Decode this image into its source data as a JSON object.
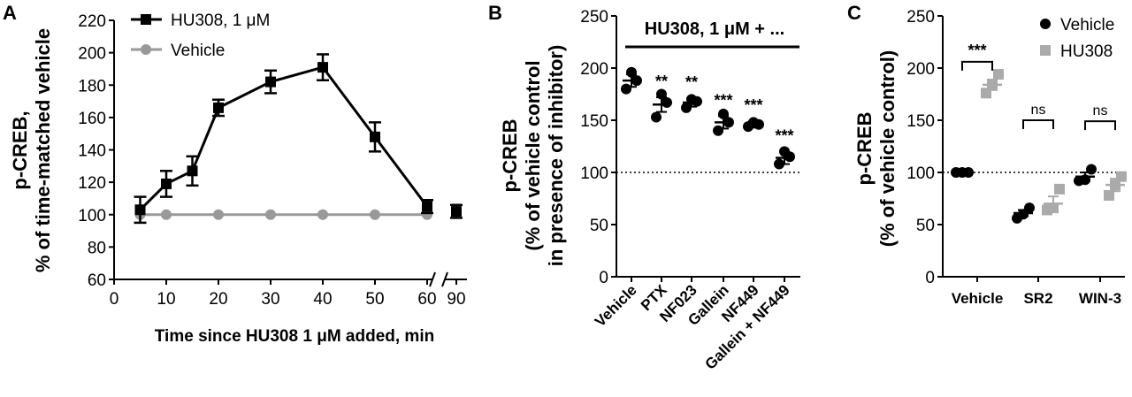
{
  "chart_data": [
    {
      "panel": "A",
      "type": "line",
      "title": "",
      "xlabel": "Time since HU308 1 μM added, min",
      "ylabel_lines": [
        "p-CREB,",
        "% of time-matched vehicle"
      ],
      "xlim": [
        0,
        90
      ],
      "ylim": [
        60,
        220
      ],
      "x_ticks": [
        "0",
        "10",
        "20",
        "30",
        "40",
        "50",
        "60",
        "90"
      ],
      "y_ticks": [
        "60",
        "80",
        "100",
        "120",
        "140",
        "160",
        "180",
        "200",
        "220"
      ],
      "legend_position": "top-left",
      "series": [
        {
          "name": "HU308, 1 μM",
          "color": "#000000",
          "marker": "square",
          "x": [
            5,
            10,
            15,
            20,
            30,
            40,
            50,
            60,
            90
          ],
          "y": [
            103,
            119,
            127,
            166,
            182,
            191,
            148,
            105,
            102
          ],
          "err": [
            8,
            8,
            9,
            5,
            7,
            8,
            9,
            4,
            4
          ]
        },
        {
          "name": "Vehicle",
          "color": "#999999",
          "marker": "circle",
          "x": [
            5,
            10,
            20,
            30,
            40,
            50,
            60
          ],
          "y": [
            100,
            100,
            100,
            100,
            100,
            100,
            100
          ],
          "err": [
            0,
            0,
            0,
            0,
            0,
            0,
            0
          ]
        }
      ]
    },
    {
      "panel": "B",
      "type": "scatter",
      "title": "HU308, 1 μM + ...",
      "ylabel_lines": [
        "p-CREB",
        "(% of vehicle control",
        "in presence of inhibitor)"
      ],
      "ylim": [
        0,
        250
      ],
      "y_ticks": [
        "0",
        "50",
        "100",
        "150",
        "200",
        "250"
      ],
      "reference_line": 100,
      "categories": [
        "Vehicle",
        "PTX",
        "NF023",
        "Gallein",
        "NF449",
        "Gallein + NF449"
      ],
      "means": [
        188,
        165,
        167,
        148,
        146,
        114
      ],
      "sem": [
        6,
        7,
        4,
        6,
        3,
        6
      ],
      "points": [
        [
          180,
          188,
          196
        ],
        [
          153,
          167,
          175
        ],
        [
          162,
          168,
          170
        ],
        [
          140,
          148,
          156
        ],
        [
          144,
          146,
          148
        ],
        [
          108,
          115,
          120
        ]
      ],
      "significance": [
        "",
        "**",
        "**",
        "***",
        "***",
        "***"
      ],
      "color": "#000000"
    },
    {
      "panel": "C",
      "type": "scatter",
      "title": "",
      "ylabel_lines": [
        "p-CREB",
        "(% of vehicle control)"
      ],
      "ylim": [
        0,
        250
      ],
      "y_ticks": [
        "0",
        "50",
        "100",
        "150",
        "200",
        "250"
      ],
      "reference_line": 100,
      "categories": [
        "Vehicle",
        "SR2",
        "WIN-3"
      ],
      "legend_position": "top-right",
      "series": [
        {
          "name": "Vehicle",
          "color": "#000000",
          "marker": "circle",
          "means": [
            100,
            61,
            96
          ],
          "sem": [
            0,
            3,
            4
          ],
          "points": [
            [
              100,
              100,
              100
            ],
            [
              56,
              60,
              66
            ],
            [
              92,
              93,
              103
            ]
          ]
        },
        {
          "name": "HU308",
          "color": "#aaaaaa",
          "marker": "square",
          "means": [
            184,
            70,
            88
          ],
          "sem": [
            5,
            7,
            6
          ],
          "points": [
            [
              176,
              184,
              194
            ],
            [
              64,
              66,
              84
            ],
            [
              78,
              88,
              96
            ]
          ]
        }
      ],
      "comparisons": [
        "***",
        "ns",
        "ns"
      ]
    }
  ]
}
